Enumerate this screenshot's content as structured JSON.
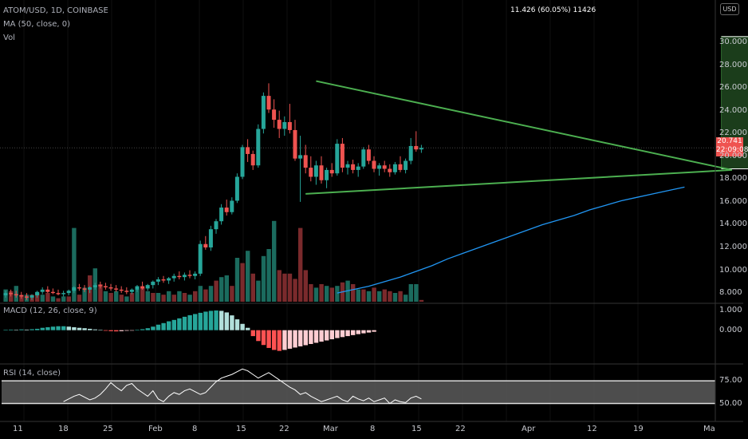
{
  "header": {
    "symbol": "ATOM/USD, 1D, COINBASE",
    "ma": "MA (50, close, 0)",
    "vol": "Vol",
    "currency": "USD"
  },
  "price_tag": {
    "price": "20.741",
    "countdown": "22:09:08"
  },
  "measure_label": "11.426 (60.05%) 11426",
  "macd_label": "MACD (12, 26, close, 9)",
  "rsi_label": "RSI (14, close)",
  "colors": {
    "up": "#26a69a",
    "down": "#ef5350",
    "ma": "#2196f3",
    "trend": "#4caf50",
    "target": "#1b3d1b"
  },
  "chart_data": [
    {
      "type": "candlestick",
      "x_labels": [
        "11",
        "18",
        "25",
        "Feb",
        "8",
        "15",
        "22",
        "Mar",
        "8",
        "15",
        "22",
        "Apr",
        "12",
        "19",
        "Ma"
      ],
      "y_ticks": [
        "30.000",
        "28.000",
        "26.000",
        "24.000",
        "22.000",
        "20.000",
        "18.000",
        "16.000",
        "14.000",
        "12.000",
        "10.000",
        "8.000"
      ],
      "ylim": [
        7.8,
        31.4
      ],
      "candles": [
        [
          7.8,
          8.2,
          7.6,
          8.0
        ],
        [
          8.0,
          8.3,
          7.7,
          7.9
        ],
        [
          7.9,
          8.2,
          7.6,
          7.8
        ],
        [
          7.8,
          8.1,
          7.5,
          7.7
        ],
        [
          7.7,
          8.0,
          7.4,
          7.6
        ],
        [
          7.6,
          7.9,
          7.4,
          7.8
        ],
        [
          7.8,
          8.2,
          7.6,
          8.1
        ],
        [
          8.1,
          8.5,
          7.9,
          8.3
        ],
        [
          8.3,
          8.6,
          8.0,
          8.1
        ],
        [
          8.1,
          8.4,
          7.9,
          8.0
        ],
        [
          8.0,
          8.3,
          7.8,
          7.9
        ],
        [
          7.9,
          8.2,
          7.7,
          8.0
        ],
        [
          8.0,
          8.3,
          7.8,
          8.2
        ],
        [
          8.2,
          8.6,
          8.0,
          8.5
        ],
        [
          8.5,
          8.8,
          8.2,
          8.4
        ],
        [
          8.4,
          8.7,
          8.1,
          8.3
        ],
        [
          8.3,
          8.6,
          8.0,
          8.5
        ],
        [
          8.5,
          8.9,
          8.3,
          8.7
        ],
        [
          8.7,
          9.0,
          8.4,
          8.6
        ],
        [
          8.6,
          8.9,
          8.3,
          8.5
        ],
        [
          8.5,
          8.8,
          8.2,
          8.4
        ],
        [
          8.4,
          8.7,
          8.1,
          8.3
        ],
        [
          8.3,
          8.6,
          8.0,
          8.2
        ],
        [
          8.2,
          8.5,
          7.9,
          8.1
        ],
        [
          8.1,
          8.4,
          7.9,
          8.3
        ],
        [
          8.3,
          8.7,
          8.1,
          8.6
        ],
        [
          8.6,
          9.0,
          8.3,
          8.4
        ],
        [
          8.4,
          8.8,
          8.2,
          8.7
        ],
        [
          8.7,
          9.1,
          8.4,
          9.0
        ],
        [
          9.0,
          9.4,
          8.7,
          9.2
        ],
        [
          9.2,
          9.5,
          8.9,
          9.1
        ],
        [
          9.1,
          9.4,
          8.8,
          9.3
        ],
        [
          9.3,
          9.7,
          9.0,
          9.5
        ],
        [
          9.5,
          9.9,
          9.2,
          9.4
        ],
        [
          9.4,
          9.8,
          9.1,
          9.6
        ],
        [
          9.6,
          10.0,
          9.3,
          9.5
        ],
        [
          9.5,
          9.9,
          9.2,
          9.7
        ],
        [
          9.7,
          12.6,
          9.5,
          12.3
        ],
        [
          12.3,
          13.0,
          11.8,
          12.0
        ],
        [
          12.0,
          13.9,
          11.7,
          13.6
        ],
        [
          13.6,
          14.5,
          13.2,
          14.3
        ],
        [
          14.3,
          15.8,
          14.0,
          15.5
        ],
        [
          15.5,
          16.2,
          14.8,
          15.1
        ],
        [
          15.1,
          16.4,
          14.9,
          16.1
        ],
        [
          16.1,
          18.5,
          15.9,
          18.2
        ],
        [
          18.2,
          21.0,
          18.0,
          20.8
        ],
        [
          20.8,
          21.5,
          19.5,
          20.2
        ],
        [
          20.2,
          20.5,
          18.8,
          19.2
        ],
        [
          19.2,
          22.8,
          19.0,
          22.4
        ],
        [
          22.4,
          25.6,
          22.0,
          25.3
        ],
        [
          25.3,
          26.4,
          23.8,
          24.1
        ],
        [
          24.1,
          25.0,
          22.5,
          23.2
        ],
        [
          23.2,
          24.0,
          21.6,
          22.4
        ],
        [
          22.4,
          23.5,
          21.8,
          23.0
        ],
        [
          23.0,
          24.6,
          22.0,
          22.3
        ],
        [
          22.3,
          23.2,
          19.6,
          19.8
        ],
        [
          19.8,
          21.8,
          16.0,
          20.1
        ],
        [
          20.1,
          21.0,
          18.5,
          19.0
        ],
        [
          19.0,
          20.0,
          17.8,
          18.2
        ],
        [
          18.2,
          19.6,
          17.5,
          19.2
        ],
        [
          19.2,
          20.0,
          17.6,
          17.9
        ],
        [
          17.9,
          19.0,
          17.2,
          18.8
        ],
        [
          18.8,
          19.4,
          18.2,
          18.5
        ],
        [
          18.5,
          21.5,
          18.3,
          21.1
        ],
        [
          21.1,
          21.6,
          18.6,
          19.0
        ],
        [
          19.0,
          19.6,
          18.4,
          19.3
        ],
        [
          19.3,
          19.7,
          18.5,
          18.8
        ],
        [
          18.8,
          19.4,
          18.2,
          19.1
        ],
        [
          19.1,
          20.8,
          18.9,
          20.6
        ],
        [
          20.6,
          21.0,
          19.3,
          19.6
        ],
        [
          19.6,
          20.0,
          18.6,
          18.9
        ],
        [
          18.9,
          19.4,
          18.3,
          19.2
        ],
        [
          19.2,
          19.6,
          18.6,
          18.9
        ],
        [
          18.9,
          19.3,
          18.2,
          18.6
        ],
        [
          18.6,
          19.5,
          18.4,
          19.3
        ],
        [
          19.3,
          20.0,
          18.6,
          18.8
        ],
        [
          18.8,
          19.8,
          18.5,
          19.6
        ],
        [
          19.6,
          21.6,
          19.3,
          20.9
        ],
        [
          20.9,
          22.2,
          20.4,
          20.6
        ],
        [
          20.6,
          21.0,
          20.3,
          20.74
        ]
      ],
      "ma50": [
        [
          63,
          8.0
        ],
        [
          66,
          8.3
        ],
        [
          69,
          8.6
        ],
        [
          72,
          9.0
        ],
        [
          75,
          9.4
        ],
        [
          78,
          9.9
        ],
        [
          81,
          10.4
        ],
        [
          84,
          11.0
        ],
        [
          87,
          11.5
        ],
        [
          90,
          12.0
        ],
        [
          93,
          12.5
        ],
        [
          96,
          13.0
        ],
        [
          99,
          13.5
        ],
        [
          102,
          14.0
        ],
        [
          105,
          14.4
        ],
        [
          108,
          14.8
        ],
        [
          111,
          15.3
        ],
        [
          114,
          15.7
        ],
        [
          117,
          16.1
        ],
        [
          120,
          16.4
        ],
        [
          123,
          16.7
        ],
        [
          126,
          17.0
        ],
        [
          129,
          17.3
        ]
      ],
      "volume": [
        [
          0.7,
          1
        ],
        [
          0.6,
          0
        ],
        [
          0.9,
          1
        ],
        [
          0.4,
          0
        ],
        [
          0.4,
          1
        ],
        [
          0.4,
          0
        ],
        [
          0.5,
          0
        ],
        [
          0.4,
          1
        ],
        [
          0.5,
          0
        ],
        [
          0.3,
          1
        ],
        [
          0.2,
          0
        ],
        [
          0.3,
          1
        ],
        [
          0.3,
          0
        ],
        [
          4.2,
          1
        ],
        [
          0.4,
          0
        ],
        [
          0.8,
          1
        ],
        [
          1.5,
          0
        ],
        [
          1.9,
          1
        ],
        [
          1.0,
          0
        ],
        [
          0.6,
          1
        ],
        [
          0.5,
          0
        ],
        [
          0.6,
          1
        ],
        [
          0.4,
          0
        ],
        [
          0.3,
          1
        ],
        [
          0.5,
          0
        ],
        [
          0.7,
          1
        ],
        [
          0.8,
          0
        ],
        [
          0.6,
          1
        ],
        [
          0.5,
          0
        ],
        [
          0.5,
          1
        ],
        [
          0.4,
          0
        ],
        [
          0.6,
          1
        ],
        [
          0.4,
          0
        ],
        [
          0.6,
          1
        ],
        [
          0.5,
          0
        ],
        [
          0.4,
          1
        ],
        [
          0.6,
          0
        ],
        [
          0.9,
          1
        ],
        [
          0.7,
          0
        ],
        [
          0.9,
          1
        ],
        [
          1.2,
          0
        ],
        [
          1.4,
          1
        ],
        [
          1.5,
          1
        ],
        [
          0.9,
          0
        ],
        [
          2.5,
          1
        ],
        [
          2.2,
          0
        ],
        [
          2.9,
          1
        ],
        [
          1.6,
          0
        ],
        [
          1.2,
          1
        ],
        [
          2.6,
          1
        ],
        [
          3.0,
          1
        ],
        [
          4.6,
          1
        ],
        [
          1.8,
          0
        ],
        [
          1.6,
          0
        ],
        [
          1.6,
          0
        ],
        [
          1.3,
          0
        ],
        [
          4.2,
          0
        ],
        [
          1.8,
          0
        ],
        [
          1.0,
          0
        ],
        [
          0.8,
          1
        ],
        [
          1.0,
          0
        ],
        [
          0.9,
          1
        ],
        [
          0.8,
          0
        ],
        [
          0.9,
          1
        ],
        [
          1.1,
          0
        ],
        [
          1.2,
          1
        ],
        [
          1.0,
          0
        ],
        [
          0.7,
          1
        ],
        [
          0.7,
          0
        ],
        [
          0.6,
          1
        ],
        [
          0.8,
          0
        ],
        [
          0.6,
          1
        ],
        [
          0.7,
          0
        ],
        [
          0.6,
          0
        ],
        [
          0.5,
          1
        ],
        [
          0.6,
          0
        ],
        [
          0.4,
          1
        ],
        [
          1.0,
          1
        ],
        [
          1.0,
          1
        ],
        [
          0.1,
          0
        ]
      ],
      "trendlines": {
        "upper": [
          [
            59,
            26.6
          ],
          [
            138,
            18.8
          ]
        ],
        "lower": [
          [
            57,
            16.7
          ],
          [
            138,
            18.8
          ]
        ],
        "target_box": {
          "x0": 136,
          "x1": 211,
          "y0": 18.9,
          "y1": 30.5
        }
      }
    },
    {
      "type": "histogram",
      "name": "MACD (12, 26, close, 9)",
      "y_ticks": [
        "1.000",
        "0.000"
      ],
      "ylim": [
        -1.55,
        1.2
      ],
      "values": [
        0.02,
        0.03,
        0.02,
        0.04,
        0.03,
        0.05,
        0.07,
        0.12,
        0.15,
        0.18,
        0.2,
        0.2,
        0.18,
        0.15,
        0.12,
        0.1,
        0.07,
        0.04,
        0.01,
        -0.03,
        -0.05,
        -0.06,
        -0.05,
        -0.03,
        -0.01,
        0.02,
        0.05,
        0.1,
        0.18,
        0.28,
        0.36,
        0.45,
        0.52,
        0.6,
        0.68,
        0.76,
        0.82,
        0.88,
        0.94,
        0.98,
        1.0,
        0.98,
        0.9,
        0.75,
        0.55,
        0.32,
        0.12,
        -0.3,
        -0.55,
        -0.75,
        -0.9,
        -1.0,
        -1.05,
        -1.0,
        -0.94,
        -0.88,
        -0.82,
        -0.76,
        -0.7,
        -0.64,
        -0.58,
        -0.52,
        -0.46,
        -0.4,
        -0.35,
        -0.3,
        -0.25,
        -0.2,
        -0.16,
        -0.12,
        -0.08
      ]
    },
    {
      "type": "line",
      "name": "RSI (14, close)",
      "y_ticks": [
        "75.00",
        "50.00"
      ],
      "ylim": [
        32,
        90
      ],
      "values": [
        52,
        55,
        58,
        60,
        57,
        54,
        56,
        60,
        66,
        73,
        68,
        64,
        70,
        72,
        66,
        62,
        58,
        64,
        55,
        52,
        58,
        62,
        60,
        64,
        66,
        63,
        60,
        62,
        68,
        74,
        78,
        80,
        82,
        85,
        88,
        86,
        82,
        78,
        81,
        84,
        80,
        76,
        72,
        68,
        65,
        60,
        62,
        58,
        55,
        52,
        54,
        56,
        58,
        54,
        52,
        58,
        55,
        53,
        56,
        52,
        54,
        56,
        50,
        54,
        52,
        51,
        56,
        58,
        55
      ],
      "band": [
        50,
        75
      ]
    }
  ]
}
